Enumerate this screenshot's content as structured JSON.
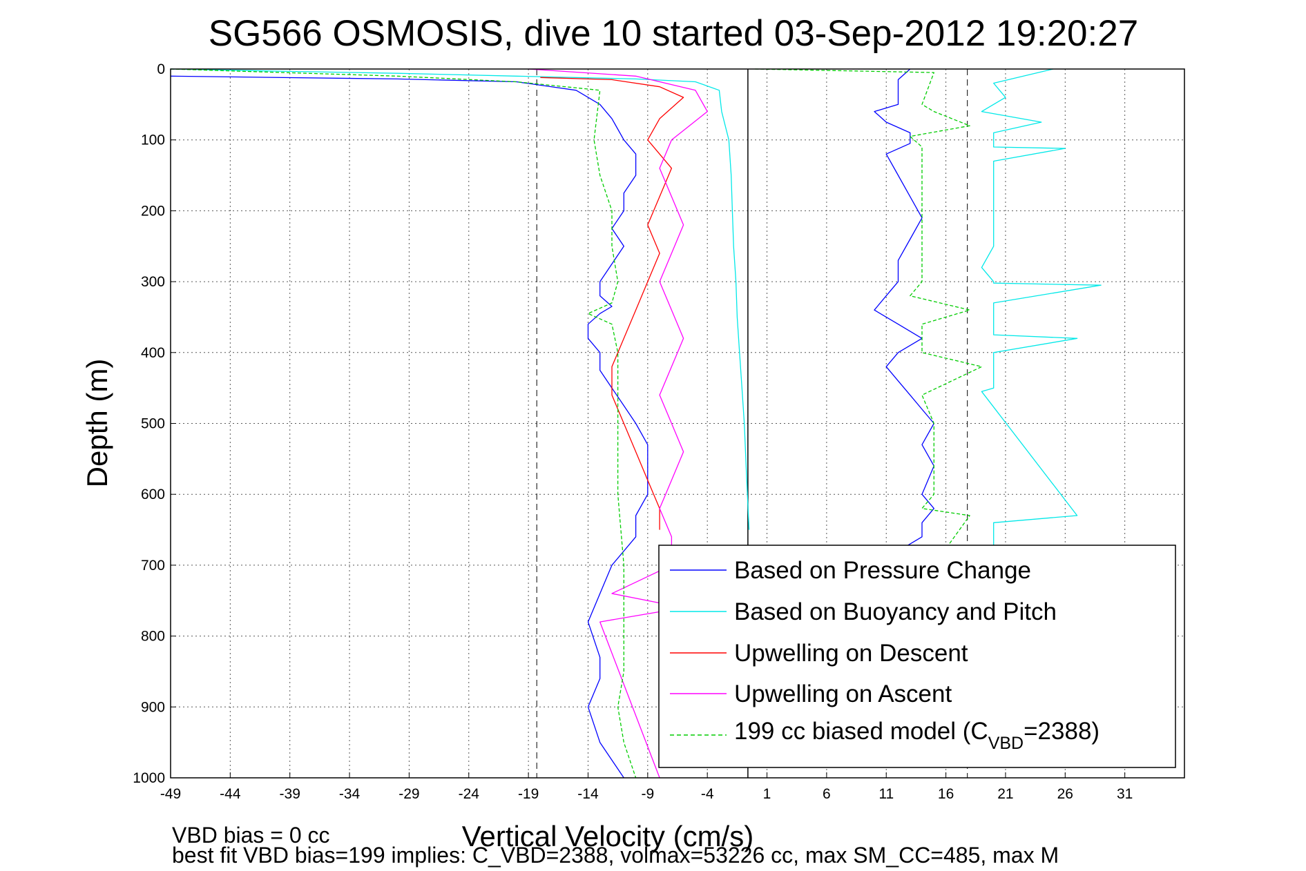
{
  "chart_data": {
    "type": "line",
    "title": "SG566 OSMOSIS, dive 10 started 03-Sep-2012 19:20:27",
    "xlabel": "Vertical Velocity (cm/s)",
    "ylabel": "Depth (m)",
    "xlim": [
      -49,
      36
    ],
    "ylim": [
      1000,
      0
    ],
    "y_reversed": true,
    "grid": true,
    "legend_position": "lower-right",
    "xticks": [
      "-49",
      "-44",
      "-39",
      "-34",
      "-29",
      "-24",
      "-19",
      "-14",
      "-9",
      "-4",
      "1",
      "6",
      "11",
      "16",
      "21",
      "26",
      "31"
    ],
    "yticks": [
      "0",
      "100",
      "200",
      "300",
      "400",
      "500",
      "600",
      "700",
      "800",
      "900",
      "1000"
    ],
    "reference_lines": {
      "dashed_x": [
        -18.3,
        17.8
      ],
      "solid_x": [
        -0.6
      ]
    },
    "series": [
      {
        "name": "Based on Pressure Change",
        "color": "#0000ff",
        "group": "descent",
        "x": [
          -49,
          -30,
          -20,
          -15,
          -13,
          -12,
          -11,
          -10,
          -10,
          -11,
          -11,
          -12,
          -11,
          -12,
          -13,
          -13,
          -12,
          -13,
          -14,
          -14,
          -13,
          -13,
          -12,
          -11,
          -10,
          -9,
          -9,
          -9,
          -10,
          -10,
          -12,
          -14,
          -13,
          -13,
          -14,
          -13,
          -11
        ],
        "y": [
          10,
          14,
          18,
          30,
          50,
          70,
          100,
          120,
          150,
          175,
          200,
          225,
          250,
          275,
          300,
          320,
          335,
          345,
          360,
          380,
          400,
          425,
          450,
          475,
          500,
          530,
          560,
          600,
          630,
          660,
          700,
          780,
          830,
          860,
          900,
          950,
          1000
        ]
      },
      {
        "name": "Based on Pressure Change",
        "color": "#0000ff",
        "group": "ascent",
        "x": [
          13,
          12,
          12,
          12,
          10,
          11,
          13,
          13,
          11,
          12,
          13,
          14,
          13,
          12,
          12,
          11,
          10,
          12,
          14,
          12,
          11,
          12,
          13,
          14,
          15,
          14,
          15,
          14,
          15,
          14,
          14,
          12,
          12
        ],
        "y": [
          0,
          15,
          30,
          50,
          60,
          75,
          90,
          105,
          120,
          150,
          180,
          210,
          240,
          270,
          300,
          320,
          340,
          360,
          380,
          400,
          420,
          440,
          460,
          480,
          500,
          530,
          560,
          600,
          620,
          640,
          660,
          680,
          700
        ]
      },
      {
        "name": "Based on Buoyancy and Pitch",
        "color": "#00e8e8",
        "group": "descent",
        "x": [
          -49,
          -40,
          -30,
          -20,
          -10,
          -5,
          -3,
          -2.8,
          -2.5,
          -2.2,
          -2.0,
          -1.9,
          -1.8,
          -1.6,
          -1.5,
          -1.3,
          -1.1,
          -0.9,
          -0.7,
          -0.5
        ],
        "y": [
          0,
          3,
          6,
          10,
          14,
          18,
          30,
          60,
          80,
          100,
          150,
          200,
          250,
          300,
          350,
          400,
          450,
          500,
          580,
          650
        ]
      },
      {
        "name": "Based on Buoyancy and Pitch",
        "color": "#00e8e8",
        "group": "ascent",
        "x": [
          25,
          20,
          21,
          19,
          24,
          20,
          20,
          26,
          20,
          20,
          20,
          19,
          20,
          20,
          29,
          20,
          20,
          27,
          20,
          20,
          20,
          19,
          27,
          20,
          20,
          20
        ],
        "y": [
          0,
          20,
          40,
          60,
          75,
          90,
          110,
          112,
          130,
          200,
          250,
          280,
          300,
          302,
          305,
          330,
          375,
          380,
          400,
          420,
          450,
          455,
          630,
          640,
          660,
          700
        ]
      },
      {
        "name": "Upwelling on Descent",
        "color": "#ff0000",
        "group": "descent",
        "x": [
          -18,
          -12,
          -8,
          -6,
          -8,
          -9,
          -7,
          -8,
          -9,
          -8,
          -9,
          -10,
          -11,
          -12,
          -12,
          -11,
          -10,
          -9,
          -8,
          -8
        ],
        "y": [
          12,
          15,
          25,
          40,
          70,
          100,
          140,
          180,
          220,
          260,
          300,
          340,
          380,
          420,
          460,
          500,
          540,
          580,
          620,
          650
        ]
      },
      {
        "name": "Upwelling on Ascent",
        "color": "#ff00ff",
        "group": "ascent",
        "x": [
          -19,
          -10,
          -5,
          -4,
          -7,
          -8,
          -7,
          -6,
          -7,
          -8,
          -7,
          -6,
          -7,
          -8,
          -7,
          -6,
          -7,
          -8,
          -7,
          -7,
          -12,
          -6,
          -13,
          -8
        ],
        "y": [
          0,
          10,
          30,
          60,
          100,
          140,
          180,
          220,
          260,
          300,
          340,
          380,
          420,
          460,
          500,
          540,
          580,
          620,
          660,
          700,
          740,
          760,
          780,
          1000
        ]
      },
      {
        "name": "199 cc biased model (C_VBD=2388)",
        "color": "#00cc00",
        "group": "descent",
        "x": [
          -49,
          -30,
          -20,
          -13,
          -13.5,
          -13,
          -12,
          -12,
          -11.5,
          -12,
          -14,
          -12,
          -11.5,
          -11.5,
          -11.5,
          -11,
          -11,
          -11,
          -11.5,
          -11,
          -10
        ],
        "y": [
          0,
          10,
          18,
          30,
          100,
          150,
          200,
          250,
          300,
          330,
          345,
          360,
          400,
          500,
          600,
          700,
          800,
          850,
          900,
          950,
          1000
        ]
      },
      {
        "name": "199 cc biased model (C_VBD=2388)",
        "color": "#00cc00",
        "group": "ascent",
        "x": [
          0,
          15,
          14,
          15,
          18,
          13,
          14,
          14,
          14,
          13,
          18,
          14,
          14,
          19,
          14,
          15,
          15,
          14,
          18,
          15
        ],
        "y": [
          0,
          5,
          50,
          60,
          80,
          95,
          110,
          200,
          300,
          320,
          340,
          360,
          400,
          420,
          460,
          500,
          600,
          620,
          630,
          700
        ]
      }
    ]
  },
  "legend": {
    "items": [
      {
        "label": "Based on Pressure Change",
        "color": "#0000ff",
        "style": "solid"
      },
      {
        "label": "Based on Buoyancy and Pitch",
        "color": "#00e8e8",
        "style": "solid"
      },
      {
        "label": "Upwelling on Descent",
        "color": "#ff0000",
        "style": "solid"
      },
      {
        "label": "Upwelling on Ascent",
        "color": "#ff00ff",
        "style": "solid"
      },
      {
        "label": "199 cc biased model (C",
        "sub": "VBD",
        "tail": "=2388)",
        "color": "#00cc00",
        "style": "dashed"
      }
    ]
  },
  "footer": {
    "line1": "VBD bias = 0 cc",
    "line2": "best fit VBD bias=199 implies: C_VBD=2388, volmax=53226 cc, max SM_CC=485, max M"
  }
}
